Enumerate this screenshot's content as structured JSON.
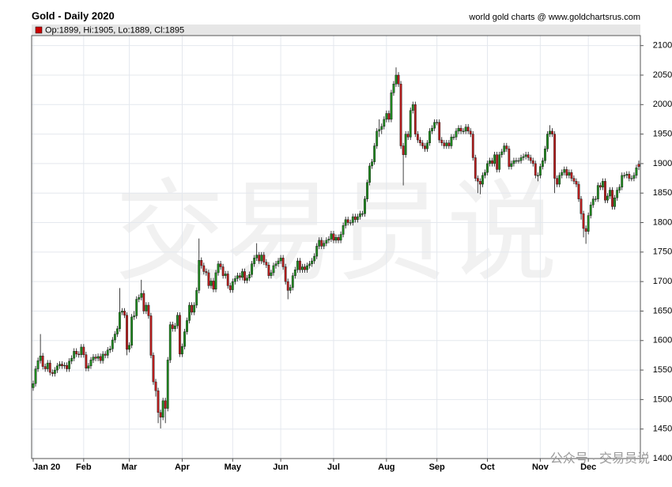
{
  "chart_data": {
    "type": "candlestick",
    "title": "Gold - Daily 2020",
    "source": "world gold charts @ www.goldchartsrus.com",
    "legend_text": "Op:1899, Hi:1905, Lo:1889, Cl:1895",
    "watermark": "交易员说",
    "footer_watermark": "公众号 · 交易员说",
    "up_color": "#1e8a1e",
    "down_color": "#b81c1c",
    "grid": true,
    "ylim": [
      1400,
      2117
    ],
    "yticks": [
      1400,
      1450,
      1500,
      1550,
      1600,
      1650,
      1700,
      1750,
      1800,
      1850,
      1900,
      1950,
      2000,
      2050,
      2100
    ],
    "categories": [
      "Jan 20",
      null,
      null,
      null,
      null,
      null,
      null,
      null,
      null,
      null,
      null,
      null,
      null,
      null,
      null,
      null,
      null,
      null,
      null,
      null,
      null,
      "Feb",
      null,
      null,
      null,
      null,
      null,
      null,
      null,
      null,
      null,
      null,
      null,
      null,
      null,
      null,
      null,
      null,
      null,
      null,
      "Mar",
      null,
      null,
      null,
      null,
      null,
      null,
      null,
      null,
      null,
      null,
      null,
      null,
      null,
      null,
      null,
      null,
      null,
      null,
      null,
      null,
      null,
      "Apr",
      null,
      null,
      null,
      null,
      null,
      null,
      null,
      null,
      null,
      null,
      null,
      null,
      null,
      null,
      null,
      null,
      null,
      null,
      null,
      null,
      "May",
      null,
      null,
      null,
      null,
      null,
      null,
      null,
      null,
      null,
      null,
      null,
      null,
      null,
      null,
      null,
      null,
      null,
      null,
      null,
      "Jun",
      null,
      null,
      null,
      null,
      null,
      null,
      null,
      null,
      null,
      null,
      null,
      null,
      null,
      null,
      null,
      null,
      null,
      null,
      null,
      null,
      null,
      "Jul",
      null,
      null,
      null,
      null,
      null,
      null,
      null,
      null,
      null,
      null,
      null,
      null,
      null,
      null,
      null,
      null,
      null,
      null,
      null,
      null,
      null,
      "Aug",
      null,
      null,
      null,
      null,
      null,
      null,
      null,
      null,
      null,
      null,
      null,
      null,
      null,
      null,
      null,
      null,
      null,
      null,
      null,
      null,
      "Sep",
      null,
      null,
      null,
      null,
      null,
      null,
      null,
      null,
      null,
      null,
      null,
      null,
      null,
      null,
      null,
      null,
      null,
      null,
      null,
      null,
      "Oct",
      null,
      null,
      null,
      null,
      null,
      null,
      null,
      null,
      null,
      null,
      null,
      null,
      null,
      null,
      null,
      null,
      null,
      null,
      null,
      null,
      null,
      "Nov",
      null,
      null,
      null,
      null,
      null,
      null,
      null,
      null,
      null,
      null,
      null,
      null,
      null,
      null,
      null,
      null,
      null,
      null,
      null,
      "Dec",
      null,
      null,
      null,
      null,
      null,
      null,
      null,
      null,
      null,
      null,
      null,
      null,
      null,
      null,
      null,
      null,
      null,
      null,
      null,
      null,
      null
    ],
    "open": [
      1520,
      1527,
      1552,
      1566,
      1574,
      1556,
      1552,
      1562,
      1546,
      1544,
      1550,
      1557,
      1560,
      1557,
      1558,
      1552,
      1565,
      1570,
      1582,
      1577,
      1576,
      1589,
      1576,
      1553,
      1557,
      1567,
      1572,
      1570,
      1573,
      1566,
      1577,
      1575,
      1584,
      1586,
      1601,
      1611,
      1620,
      1648,
      1650,
      1643,
      1585,
      1592,
      1640,
      1642,
      1670,
      1673,
      1680,
      1650,
      1660,
      1642,
      1575,
      1530,
      1515,
      1478,
      1470,
      1498,
      1485,
      1567,
      1627,
      1620,
      1625,
      1643,
      1577,
      1590,
      1615,
      1634,
      1660,
      1648,
      1660,
      1685,
      1736,
      1727,
      1717,
      1715,
      1693,
      1701,
      1687,
      1715,
      1730,
      1725,
      1710,
      1713,
      1693,
      1686,
      1700,
      1705,
      1710,
      1707,
      1717,
      1702,
      1706,
      1712,
      1730,
      1740,
      1745,
      1735,
      1745,
      1733,
      1728,
      1710,
      1715,
      1727,
      1730,
      1735,
      1740,
      1725,
      1700,
      1685,
      1690,
      1710,
      1720,
      1735,
      1720,
      1725,
      1720,
      1727,
      1730,
      1735,
      1743,
      1760,
      1770,
      1760,
      1765,
      1770,
      1772,
      1781,
      1770,
      1775,
      1770,
      1780,
      1795,
      1805,
      1800,
      1800,
      1810,
      1805,
      1810,
      1815,
      1815,
      1840,
      1868,
      1896,
      1903,
      1930,
      1955,
      1958,
      1963,
      1975,
      1985,
      1975,
      2020,
      2035,
      2050,
      2035,
      1930,
      1915,
      1950,
      1945,
      1990,
      2000,
      1950,
      1940,
      1935,
      1930,
      1925,
      1935,
      1955,
      1960,
      1970,
      1970,
      1940,
      1935,
      1930,
      1935,
      1930,
      1945,
      1945,
      1955,
      1960,
      1955,
      1955,
      1962,
      1955,
      1950,
      1910,
      1875,
      1870,
      1865,
      1880,
      1885,
      1900,
      1905,
      1900,
      1915,
      1890,
      1915,
      1920,
      1930,
      1925,
      1895,
      1900,
      1905,
      1905,
      1905,
      1910,
      1912,
      1915,
      1910,
      1905,
      1900,
      1880,
      1880,
      1895,
      1905,
      1925,
      1950,
      1955,
      1950,
      1875,
      1865,
      1880,
      1885,
      1890,
      1880,
      1885,
      1875,
      1870,
      1865,
      1840,
      1815,
      1790,
      1785,
      1812,
      1830,
      1840,
      1840,
      1863,
      1860,
      1870,
      1838,
      1845,
      1855,
      1827,
      1842,
      1855,
      1860,
      1880,
      1880,
      1882,
      1875,
      1875,
      1880,
      1899
    ],
    "high": [
      1532,
      1557,
      1571,
      1611,
      1579,
      1561,
      1567,
      1567,
      1551,
      1555,
      1562,
      1565,
      1565,
      1563,
      1563,
      1570,
      1575,
      1587,
      1587,
      1582,
      1594,
      1594,
      1581,
      1562,
      1572,
      1577,
      1577,
      1578,
      1578,
      1582,
      1582,
      1589,
      1591,
      1606,
      1616,
      1625,
      1689,
      1655,
      1655,
      1648,
      1597,
      1645,
      1650,
      1675,
      1678,
      1703,
      1685,
      1665,
      1665,
      1647,
      1580,
      1535,
      1520,
      1483,
      1503,
      1503,
      1572,
      1632,
      1632,
      1630,
      1648,
      1648,
      1595,
      1620,
      1639,
      1665,
      1665,
      1665,
      1690,
      1773,
      1741,
      1732,
      1722,
      1720,
      1706,
      1706,
      1720,
      1735,
      1735,
      1730,
      1718,
      1718,
      1698,
      1705,
      1710,
      1715,
      1715,
      1722,
      1722,
      1711,
      1717,
      1735,
      1745,
      1765,
      1750,
      1750,
      1750,
      1738,
      1733,
      1720,
      1732,
      1735,
      1740,
      1745,
      1745,
      1730,
      1705,
      1695,
      1715,
      1725,
      1740,
      1740,
      1730,
      1730,
      1732,
      1735,
      1740,
      1748,
      1765,
      1775,
      1775,
      1770,
      1775,
      1777,
      1786,
      1786,
      1780,
      1780,
      1785,
      1800,
      1810,
      1810,
      1805,
      1815,
      1815,
      1815,
      1820,
      1820,
      1845,
      1873,
      1901,
      1908,
      1935,
      1960,
      1975,
      1968,
      1980,
      1990,
      1990,
      2025,
      2040,
      2063,
      2055,
      2040,
      1935,
      1955,
      1955,
      1995,
      2005,
      2005,
      1955,
      1945,
      1940,
      1935,
      1940,
      1960,
      1965,
      1975,
      1975,
      1975,
      1945,
      1940,
      1940,
      1940,
      1950,
      1950,
      1960,
      1965,
      1965,
      1960,
      1967,
      1967,
      1960,
      1955,
      1915,
      1880,
      1875,
      1885,
      1890,
      1905,
      1910,
      1910,
      1920,
      1920,
      1920,
      1925,
      1935,
      1935,
      1930,
      1905,
      1910,
      1910,
      1910,
      1915,
      1917,
      1920,
      1920,
      1915,
      1910,
      1905,
      1885,
      1900,
      1910,
      1930,
      1955,
      1965,
      1960,
      1955,
      1880,
      1885,
      1890,
      1895,
      1895,
      1890,
      1890,
      1880,
      1875,
      1870,
      1845,
      1820,
      1795,
      1817,
      1835,
      1845,
      1845,
      1868,
      1868,
      1875,
      1875,
      1850,
      1860,
      1860,
      1847,
      1860,
      1865,
      1885,
      1885,
      1887,
      1887,
      1880,
      1885,
      1898,
      1905
    ],
    "low": [
      1515,
      1522,
      1547,
      1561,
      1551,
      1547,
      1547,
      1541,
      1539,
      1539,
      1545,
      1552,
      1552,
      1552,
      1547,
      1547,
      1560,
      1565,
      1572,
      1571,
      1571,
      1571,
      1548,
      1548,
      1552,
      1562,
      1565,
      1565,
      1561,
      1561,
      1570,
      1570,
      1579,
      1581,
      1596,
      1606,
      1615,
      1643,
      1638,
      1575,
      1580,
      1587,
      1635,
      1637,
      1665,
      1668,
      1645,
      1645,
      1637,
      1570,
      1525,
      1505,
      1460,
      1451,
      1465,
      1460,
      1480,
      1562,
      1615,
      1615,
      1620,
      1572,
      1572,
      1585,
      1610,
      1629,
      1643,
      1643,
      1655,
      1680,
      1722,
      1712,
      1710,
      1688,
      1688,
      1682,
      1682,
      1710,
      1720,
      1705,
      1705,
      1688,
      1681,
      1681,
      1695,
      1700,
      1702,
      1702,
      1697,
      1697,
      1701,
      1707,
      1725,
      1735,
      1730,
      1730,
      1728,
      1723,
      1705,
      1705,
      1710,
      1722,
      1725,
      1730,
      1720,
      1695,
      1670,
      1680,
      1685,
      1705,
      1715,
      1715,
      1715,
      1715,
      1715,
      1722,
      1725,
      1730,
      1738,
      1755,
      1755,
      1755,
      1760,
      1765,
      1767,
      1765,
      1765,
      1765,
      1765,
      1775,
      1790,
      1795,
      1795,
      1795,
      1800,
      1800,
      1805,
      1810,
      1810,
      1835,
      1863,
      1891,
      1898,
      1925,
      1945,
      1950,
      1958,
      1970,
      1970,
      1970,
      2015,
      2030,
      2030,
      1925,
      1863,
      1910,
      1940,
      1940,
      1985,
      1945,
      1935,
      1930,
      1925,
      1920,
      1920,
      1930,
      1950,
      1955,
      1965,
      1935,
      1930,
      1925,
      1925,
      1925,
      1925,
      1940,
      1940,
      1950,
      1950,
      1950,
      1950,
      1950,
      1945,
      1905,
      1870,
      1850,
      1848,
      1860,
      1875,
      1880,
      1895,
      1895,
      1895,
      1885,
      1885,
      1910,
      1915,
      1920,
      1890,
      1890,
      1895,
      1900,
      1900,
      1900,
      1905,
      1907,
      1905,
      1900,
      1895,
      1875,
      1870,
      1875,
      1890,
      1900,
      1920,
      1945,
      1945,
      1850,
      1860,
      1860,
      1875,
      1880,
      1875,
      1875,
      1870,
      1865,
      1860,
      1835,
      1805,
      1775,
      1764,
      1780,
      1807,
      1825,
      1835,
      1835,
      1855,
      1855,
      1833,
      1833,
      1840,
      1822,
      1822,
      1837,
      1850,
      1855,
      1875,
      1875,
      1870,
      1870,
      1870,
      1875,
      1889
    ],
    "close": [
      1527,
      1552,
      1566,
      1574,
      1556,
      1552,
      1562,
      1546,
      1544,
      1550,
      1557,
      1560,
      1557,
      1558,
      1552,
      1565,
      1570,
      1582,
      1577,
      1576,
      1589,
      1576,
      1553,
      1557,
      1567,
      1572,
      1570,
      1573,
      1566,
      1577,
      1575,
      1584,
      1586,
      1601,
      1611,
      1620,
      1648,
      1650,
      1643,
      1585,
      1592,
      1640,
      1642,
      1670,
      1673,
      1680,
      1650,
      1660,
      1642,
      1575,
      1530,
      1515,
      1478,
      1470,
      1498,
      1485,
      1567,
      1627,
      1620,
      1625,
      1643,
      1577,
      1590,
      1615,
      1634,
      1660,
      1648,
      1660,
      1685,
      1736,
      1727,
      1717,
      1715,
      1693,
      1701,
      1687,
      1715,
      1730,
      1725,
      1710,
      1713,
      1693,
      1686,
      1700,
      1705,
      1710,
      1707,
      1717,
      1702,
      1706,
      1712,
      1730,
      1740,
      1745,
      1735,
      1745,
      1733,
      1728,
      1710,
      1715,
      1727,
      1730,
      1735,
      1740,
      1725,
      1700,
      1685,
      1690,
      1710,
      1720,
      1735,
      1720,
      1725,
      1720,
      1727,
      1730,
      1735,
      1743,
      1760,
      1770,
      1760,
      1765,
      1770,
      1772,
      1781,
      1770,
      1775,
      1770,
      1780,
      1795,
      1805,
      1800,
      1800,
      1810,
      1805,
      1810,
      1815,
      1815,
      1840,
      1868,
      1896,
      1903,
      1930,
      1955,
      1958,
      1963,
      1975,
      1985,
      1975,
      2020,
      2035,
      2050,
      2035,
      1930,
      1915,
      1950,
      1945,
      1990,
      2000,
      1950,
      1940,
      1935,
      1930,
      1925,
      1935,
      1955,
      1960,
      1970,
      1970,
      1940,
      1935,
      1930,
      1935,
      1930,
      1945,
      1945,
      1955,
      1960,
      1955,
      1955,
      1962,
      1955,
      1950,
      1910,
      1875,
      1870,
      1865,
      1880,
      1885,
      1900,
      1905,
      1900,
      1915,
      1890,
      1915,
      1920,
      1930,
      1925,
      1895,
      1900,
      1905,
      1905,
      1905,
      1910,
      1912,
      1915,
      1910,
      1905,
      1900,
      1880,
      1880,
      1895,
      1905,
      1925,
      1950,
      1955,
      1950,
      1875,
      1865,
      1880,
      1885,
      1890,
      1880,
      1885,
      1875,
      1870,
      1865,
      1840,
      1815,
      1790,
      1785,
      1812,
      1830,
      1840,
      1840,
      1863,
      1860,
      1870,
      1838,
      1845,
      1855,
      1827,
      1842,
      1855,
      1860,
      1880,
      1880,
      1882,
      1875,
      1875,
      1880,
      1893,
      1895
    ]
  }
}
